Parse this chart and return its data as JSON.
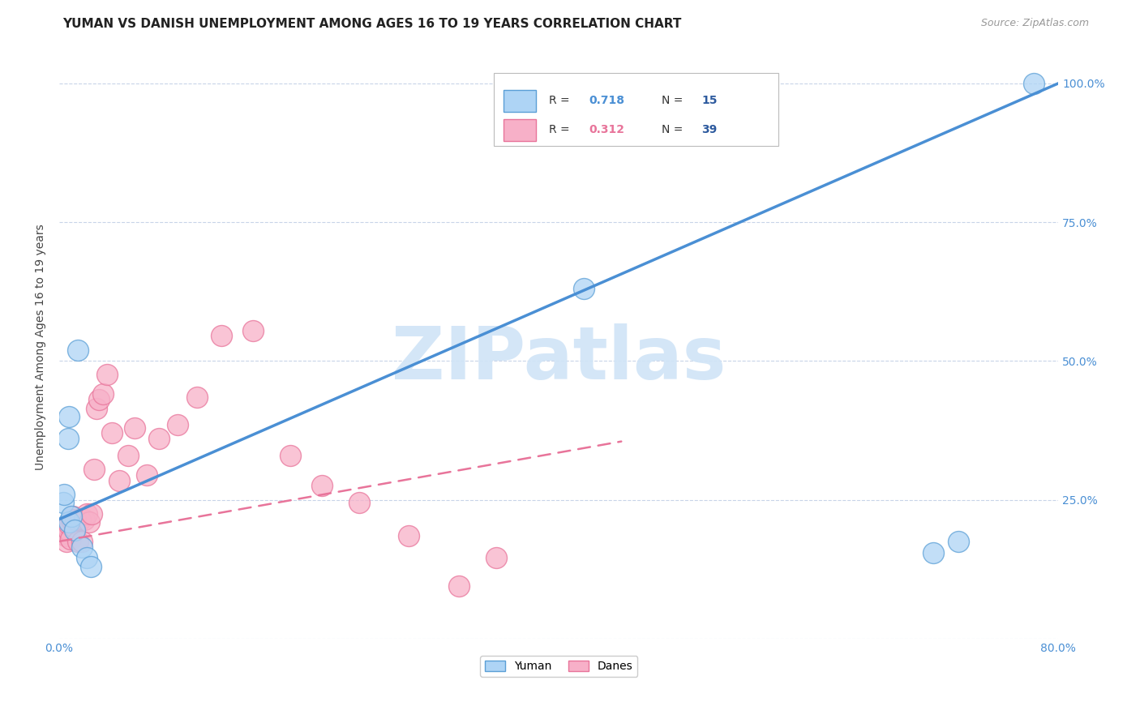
{
  "title": "YUMAN VS DANISH UNEMPLOYMENT AMONG AGES 16 TO 19 YEARS CORRELATION CHART",
  "source": "Source: ZipAtlas.com",
  "ylabel": "Unemployment Among Ages 16 to 19 years",
  "xlim": [
    0.0,
    0.8
  ],
  "ylim": [
    0.0,
    1.05
  ],
  "x_ticks": [
    0.0,
    0.1,
    0.2,
    0.3,
    0.4,
    0.5,
    0.6,
    0.7,
    0.8
  ],
  "x_tick_labels": [
    "0.0%",
    "",
    "",
    "",
    "",
    "",
    "",
    "",
    "80.0%"
  ],
  "y_ticks": [
    0.0,
    0.25,
    0.5,
    0.75,
    1.0
  ],
  "y_tick_labels": [
    "",
    "25.0%",
    "50.0%",
    "75.0%",
    "100.0%"
  ],
  "yuman_scatter_x": [
    0.003,
    0.004,
    0.007,
    0.008,
    0.008,
    0.01,
    0.012,
    0.015,
    0.018,
    0.022,
    0.025,
    0.42,
    0.7,
    0.72,
    0.78
  ],
  "yuman_scatter_y": [
    0.245,
    0.26,
    0.36,
    0.4,
    0.21,
    0.22,
    0.195,
    0.52,
    0.165,
    0.145,
    0.13,
    0.63,
    0.155,
    0.175,
    1.0
  ],
  "danes_scatter_x": [
    0.003,
    0.004,
    0.005,
    0.006,
    0.007,
    0.008,
    0.009,
    0.01,
    0.011,
    0.012,
    0.013,
    0.015,
    0.017,
    0.018,
    0.02,
    0.022,
    0.024,
    0.026,
    0.028,
    0.03,
    0.032,
    0.035,
    0.038,
    0.042,
    0.048,
    0.055,
    0.06,
    0.07,
    0.08,
    0.095,
    0.11,
    0.13,
    0.155,
    0.185,
    0.21,
    0.24,
    0.28,
    0.32,
    0.35
  ],
  "danes_scatter_y": [
    0.19,
    0.195,
    0.185,
    0.175,
    0.195,
    0.205,
    0.18,
    0.215,
    0.22,
    0.2,
    0.215,
    0.175,
    0.215,
    0.175,
    0.215,
    0.225,
    0.21,
    0.225,
    0.305,
    0.415,
    0.43,
    0.44,
    0.475,
    0.37,
    0.285,
    0.33,
    0.38,
    0.295,
    0.36,
    0.385,
    0.435,
    0.545,
    0.555,
    0.33,
    0.275,
    0.245,
    0.185,
    0.095,
    0.145
  ],
  "yuman_color": "#aed4f5",
  "danes_color": "#f7b0c8",
  "yuman_edge_color": "#5b9fd6",
  "danes_edge_color": "#e8749a",
  "yuman_line_color": "#4a8fd4",
  "danes_line_color": "#e8749a",
  "yuman_line_x": [
    0.0,
    0.8
  ],
  "yuman_line_y": [
    0.215,
    1.0
  ],
  "danes_line_x": [
    0.0,
    0.45
  ],
  "danes_line_y": [
    0.175,
    0.355
  ],
  "legend_R_yuman_color": "#4a8fd4",
  "legend_N_yuman_color": "#2d5a9e",
  "legend_R_danes_color": "#e8749a",
  "legend_N_danes_color": "#2d5a9e",
  "watermark_text": "ZIPatlas",
  "watermark_color": "#d0e4f7",
  "tick_label_color": "#4a8fd4",
  "grid_color": "#c8d4e8",
  "background_color": "#ffffff",
  "title_fontsize": 11,
  "source_fontsize": 9,
  "tick_fontsize": 10,
  "ylabel_fontsize": 10
}
